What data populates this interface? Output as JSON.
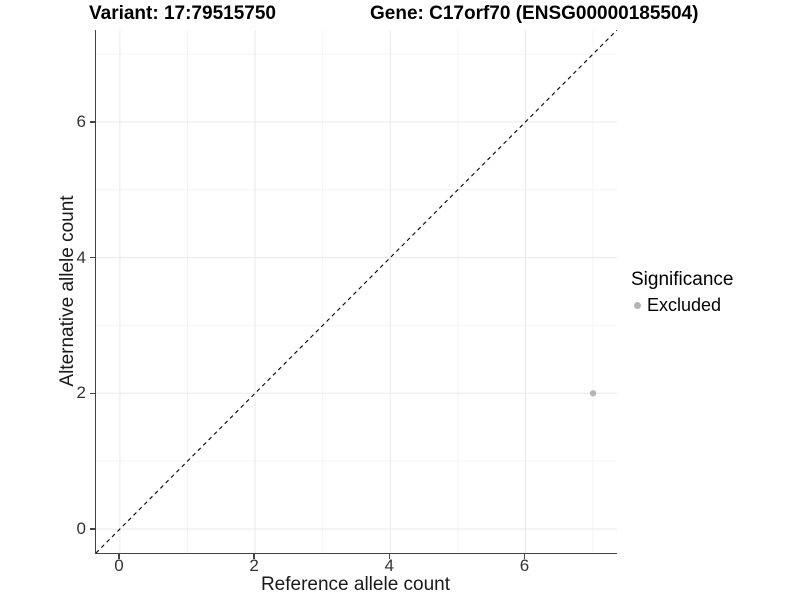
{
  "title": {
    "variant": "Variant: 17:79515750",
    "gene": "Gene: C17orf70 (ENSG00000185504)"
  },
  "axes": {
    "x_label": "Reference allele count",
    "y_label": "Alternative allele count"
  },
  "legend": {
    "title": "Significance",
    "items": [
      {
        "label": "Excluded",
        "color": "#b5b5b5"
      }
    ]
  },
  "chart_data": {
    "type": "scatter",
    "title": "Variant: 17:79515750   Gene: C17orf70 (ENSG00000185504)",
    "xlabel": "Reference allele count",
    "ylabel": "Alternative allele count",
    "xlim": [
      -0.354,
      7.354
    ],
    "ylim": [
      -0.354,
      7.354
    ],
    "x_ticks": [
      0,
      2,
      4,
      6
    ],
    "y_ticks": [
      0,
      2,
      4,
      6
    ],
    "x_minor_ticks": [
      1,
      3,
      5,
      7
    ],
    "y_minor_ticks": [
      1,
      3,
      5,
      7
    ],
    "grid": true,
    "legend_position": "right",
    "series": [
      {
        "name": "Excluded",
        "color": "#b5b5b5",
        "points": [
          {
            "x": 7,
            "y": 2
          }
        ]
      }
    ],
    "reference_line": {
      "type": "identity",
      "style": "dashed",
      "color": "#000000",
      "from": [
        -0.354,
        -0.354
      ],
      "to": [
        7.354,
        7.354
      ]
    }
  },
  "colors": {
    "background": "#ffffff",
    "axis_line": "#444444",
    "grid_major": "#e9e9e9",
    "grid_minor": "#f4f4f4",
    "point": "#b5b5b5",
    "dashed_line": "#000000"
  }
}
